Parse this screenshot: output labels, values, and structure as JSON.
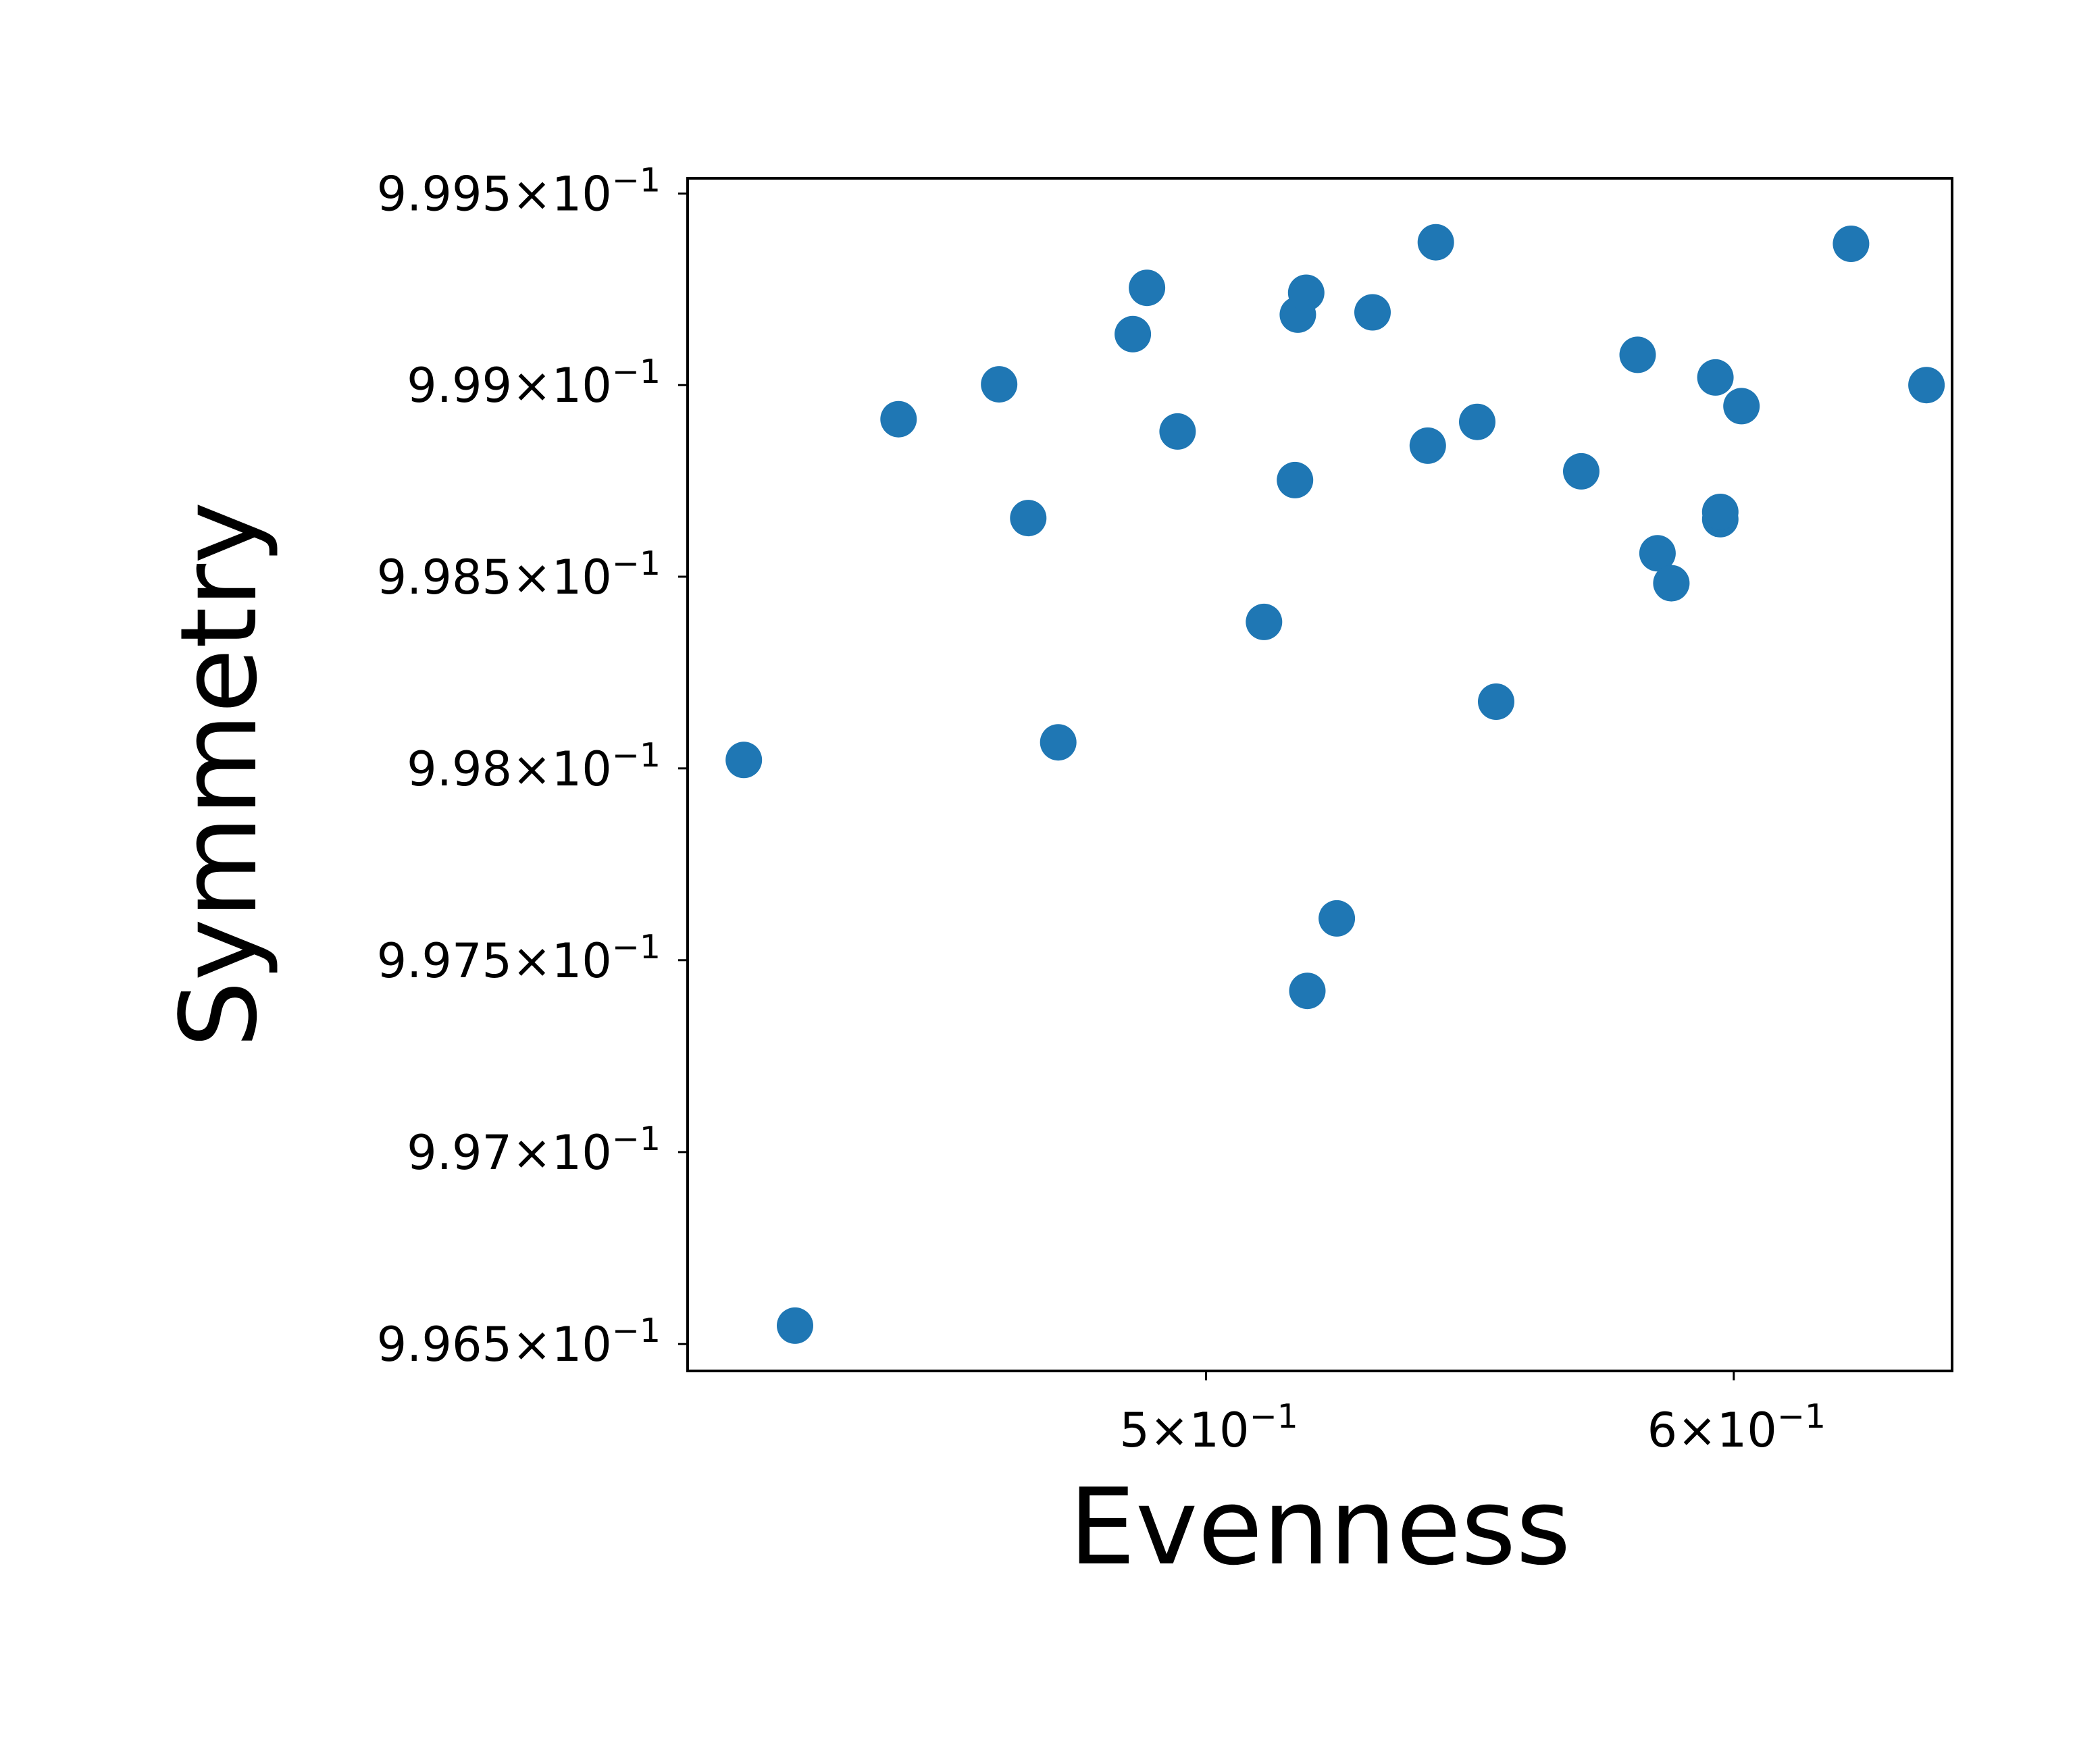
{
  "chart_data": {
    "type": "scatter",
    "title": "",
    "xlabel": "Evenness",
    "ylabel": "Symmetry",
    "x_scale": "log",
    "y_scale": "log",
    "xlim": [
      0.418,
      0.647
    ],
    "ylim": [
      0.99643,
      0.99954
    ],
    "x_ticks": [
      {
        "value": 0.5,
        "mantissa": "5",
        "base": "10",
        "exponent": "−1"
      },
      {
        "value": 0.6,
        "mantissa": "6",
        "base": "10",
        "exponent": "−1"
      }
    ],
    "y_ticks": [
      {
        "value": 0.9965,
        "mantissa": "9.965",
        "base": "10",
        "exponent": "−1"
      },
      {
        "value": 0.997,
        "mantissa": "9.97",
        "base": "10",
        "exponent": "−1"
      },
      {
        "value": 0.9975,
        "mantissa": "9.975",
        "base": "10",
        "exponent": "−1"
      },
      {
        "value": 0.998,
        "mantissa": "9.98",
        "base": "10",
        "exponent": "−1"
      },
      {
        "value": 0.9985,
        "mantissa": "9.985",
        "base": "10",
        "exponent": "−1"
      },
      {
        "value": 0.999,
        "mantissa": "9.99",
        "base": "10",
        "exponent": "−1"
      },
      {
        "value": 0.9995,
        "mantissa": "9.995",
        "base": "10",
        "exponent": "−1"
      }
    ],
    "grid": false,
    "legend": "none",
    "marker_color": "#1f77b4",
    "points": [
      {
        "x": 0.4262,
        "y": 0.998022
      },
      {
        "x": 0.4338,
        "y": 0.996548
      },
      {
        "x": 0.4496,
        "y": 0.998911
      },
      {
        "x": 0.4655,
        "y": 0.999002
      },
      {
        "x": 0.4702,
        "y": 0.998653
      },
      {
        "x": 0.4751,
        "y": 0.998068
      },
      {
        "x": 0.4875,
        "y": 0.999133
      },
      {
        "x": 0.4899,
        "y": 0.999254
      },
      {
        "x": 0.4951,
        "y": 0.998879
      },
      {
        "x": 0.5101,
        "y": 0.998382
      },
      {
        "x": 0.5156,
        "y": 0.998752
      },
      {
        "x": 0.5161,
        "y": 0.999184
      },
      {
        "x": 0.5176,
        "y": 0.999241
      },
      {
        "x": 0.5178,
        "y": 0.99742
      },
      {
        "x": 0.5231,
        "y": 0.997609
      },
      {
        "x": 0.5296,
        "y": 0.99919
      },
      {
        "x": 0.5398,
        "y": 0.998842
      },
      {
        "x": 0.5413,
        "y": 0.999373
      },
      {
        "x": 0.5491,
        "y": 0.998904
      },
      {
        "x": 0.5527,
        "y": 0.998174
      },
      {
        "x": 0.5692,
        "y": 0.998775
      },
      {
        "x": 0.5804,
        "y": 0.999079
      },
      {
        "x": 0.5844,
        "y": 0.998561
      },
      {
        "x": 0.5872,
        "y": 0.998483
      },
      {
        "x": 0.5962,
        "y": 0.99902
      },
      {
        "x": 0.5972,
        "y": 0.99865
      },
      {
        "x": 0.5972,
        "y": 0.998669
      },
      {
        "x": 0.6016,
        "y": 0.998945
      },
      {
        "x": 0.6248,
        "y": 0.999369
      },
      {
        "x": 0.6413,
        "y": 0.999
      }
    ]
  }
}
